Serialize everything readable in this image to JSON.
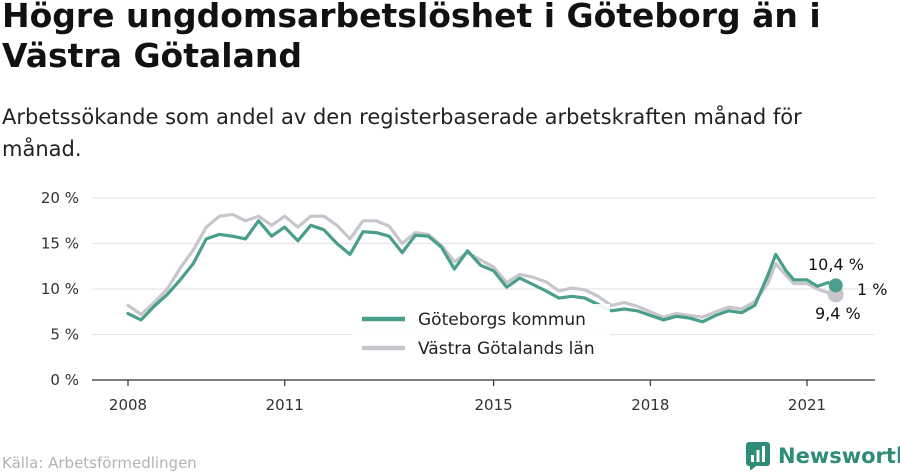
{
  "title": "Högre ungdomsarbetslöshet i Göteborg än i Västra Götaland",
  "subtitle": "Arbetssökande som andel av den registerbaserade arbetskraften månad för månad.",
  "source": "Källa: Arbetsförmedlingen",
  "brand": {
    "name": "Newsworthy",
    "icon": "newsworthy-logo-icon"
  },
  "colors": {
    "goteborg": "#4a9e8c",
    "vastra": "#c8c6cc",
    "grid": "#e6e6e6",
    "axis": "#333333"
  },
  "chart_data": {
    "type": "line",
    "title": "Högre ungdomsarbetslöshet i Göteborg än i Västra Götaland",
    "subtitle": "Arbetssökande som andel av den registerbaserade arbetskraften månad för månad.",
    "x_unit": "year (decimal, monthly)",
    "xlim": [
      2008,
      2021.7
    ],
    "ylim": [
      0,
      20
    ],
    "y_ticks": [
      0,
      5,
      10,
      15,
      20
    ],
    "y_tick_labels": [
      "0 %",
      "5 %",
      "10 %",
      "15 %",
      "20 %"
    ],
    "x_ticks": [
      2008,
      2011,
      2015,
      2018,
      2021
    ],
    "x_tick_labels": [
      "2008",
      "2011",
      "2015",
      "2018",
      "2021"
    ],
    "grid": "horizontal",
    "legend_position": "bottom-center",
    "series": [
      {
        "name": "Göteborgs kommun",
        "color": "#4a9e8c",
        "points": [
          [
            2008.0,
            7.3
          ],
          [
            2008.25,
            6.6
          ],
          [
            2008.5,
            8.1
          ],
          [
            2008.75,
            9.4
          ],
          [
            2009.0,
            11.0
          ],
          [
            2009.25,
            12.8
          ],
          [
            2009.5,
            15.5
          ],
          [
            2009.75,
            16.0
          ],
          [
            2010.0,
            15.8
          ],
          [
            2010.25,
            15.5
          ],
          [
            2010.5,
            17.5
          ],
          [
            2010.75,
            15.8
          ],
          [
            2011.0,
            16.8
          ],
          [
            2011.25,
            15.3
          ],
          [
            2011.5,
            17.0
          ],
          [
            2011.75,
            16.5
          ],
          [
            2012.0,
            15.0
          ],
          [
            2012.25,
            13.8
          ],
          [
            2012.5,
            16.3
          ],
          [
            2012.75,
            16.2
          ],
          [
            2013.0,
            15.8
          ],
          [
            2013.25,
            14.0
          ],
          [
            2013.5,
            15.9
          ],
          [
            2013.75,
            15.8
          ],
          [
            2014.0,
            14.6
          ],
          [
            2014.25,
            12.2
          ],
          [
            2014.5,
            14.2
          ],
          [
            2014.75,
            12.6
          ],
          [
            2015.0,
            12.0
          ],
          [
            2015.25,
            10.2
          ],
          [
            2015.5,
            11.2
          ],
          [
            2015.75,
            10.5
          ],
          [
            2016.0,
            9.8
          ],
          [
            2016.25,
            9.0
          ],
          [
            2016.5,
            9.2
          ],
          [
            2016.75,
            9.0
          ],
          [
            2017.0,
            8.3
          ],
          [
            2017.25,
            7.6
          ],
          [
            2017.5,
            7.8
          ],
          [
            2017.75,
            7.6
          ],
          [
            2018.0,
            7.1
          ],
          [
            2018.25,
            6.6
          ],
          [
            2018.5,
            7.0
          ],
          [
            2018.75,
            6.8
          ],
          [
            2019.0,
            6.4
          ],
          [
            2019.25,
            7.1
          ],
          [
            2019.5,
            7.6
          ],
          [
            2019.75,
            7.4
          ],
          [
            2020.0,
            8.2
          ],
          [
            2020.25,
            11.5
          ],
          [
            2020.4,
            13.8
          ],
          [
            2020.6,
            12.0
          ],
          [
            2020.75,
            11.0
          ],
          [
            2021.0,
            11.0
          ],
          [
            2021.2,
            10.3
          ],
          [
            2021.4,
            10.7
          ],
          [
            2021.55,
            10.4
          ]
        ],
        "last_value_label": "10,4 %"
      },
      {
        "name": "Västra Götalands län",
        "color": "#c8c6cc",
        "points": [
          [
            2008.0,
            8.2
          ],
          [
            2008.25,
            7.2
          ],
          [
            2008.5,
            8.5
          ],
          [
            2008.75,
            10.0
          ],
          [
            2009.0,
            12.3
          ],
          [
            2009.25,
            14.3
          ],
          [
            2009.5,
            16.8
          ],
          [
            2009.75,
            18.0
          ],
          [
            2010.0,
            18.2
          ],
          [
            2010.25,
            17.5
          ],
          [
            2010.5,
            18.0
          ],
          [
            2010.75,
            17.0
          ],
          [
            2011.0,
            18.0
          ],
          [
            2011.25,
            16.8
          ],
          [
            2011.5,
            18.0
          ],
          [
            2011.75,
            18.0
          ],
          [
            2012.0,
            17.0
          ],
          [
            2012.25,
            15.5
          ],
          [
            2012.5,
            17.5
          ],
          [
            2012.75,
            17.5
          ],
          [
            2013.0,
            16.9
          ],
          [
            2013.25,
            15.0
          ],
          [
            2013.5,
            16.2
          ],
          [
            2013.75,
            16.0
          ],
          [
            2014.0,
            14.8
          ],
          [
            2014.25,
            13.0
          ],
          [
            2014.5,
            14.0
          ],
          [
            2014.75,
            13.2
          ],
          [
            2015.0,
            12.4
          ],
          [
            2015.25,
            10.7
          ],
          [
            2015.5,
            11.6
          ],
          [
            2015.75,
            11.3
          ],
          [
            2016.0,
            10.8
          ],
          [
            2016.25,
            9.8
          ],
          [
            2016.5,
            10.1
          ],
          [
            2016.75,
            9.9
          ],
          [
            2017.0,
            9.2
          ],
          [
            2017.25,
            8.2
          ],
          [
            2017.5,
            8.5
          ],
          [
            2017.75,
            8.1
          ],
          [
            2018.0,
            7.5
          ],
          [
            2018.25,
            6.9
          ],
          [
            2018.5,
            7.3
          ],
          [
            2018.75,
            7.1
          ],
          [
            2019.0,
            6.9
          ],
          [
            2019.25,
            7.5
          ],
          [
            2019.5,
            8.0
          ],
          [
            2019.75,
            7.8
          ],
          [
            2020.0,
            8.6
          ],
          [
            2020.25,
            10.6
          ],
          [
            2020.4,
            12.8
          ],
          [
            2020.6,
            11.5
          ],
          [
            2020.75,
            10.6
          ],
          [
            2021.0,
            10.6
          ],
          [
            2021.2,
            10.0
          ],
          [
            2021.4,
            9.6
          ],
          [
            2021.55,
            9.4
          ]
        ],
        "last_value_label": "9,4 %"
      }
    ],
    "annotations": [
      "10,4 %",
      "1 %",
      "9,4 %"
    ]
  }
}
